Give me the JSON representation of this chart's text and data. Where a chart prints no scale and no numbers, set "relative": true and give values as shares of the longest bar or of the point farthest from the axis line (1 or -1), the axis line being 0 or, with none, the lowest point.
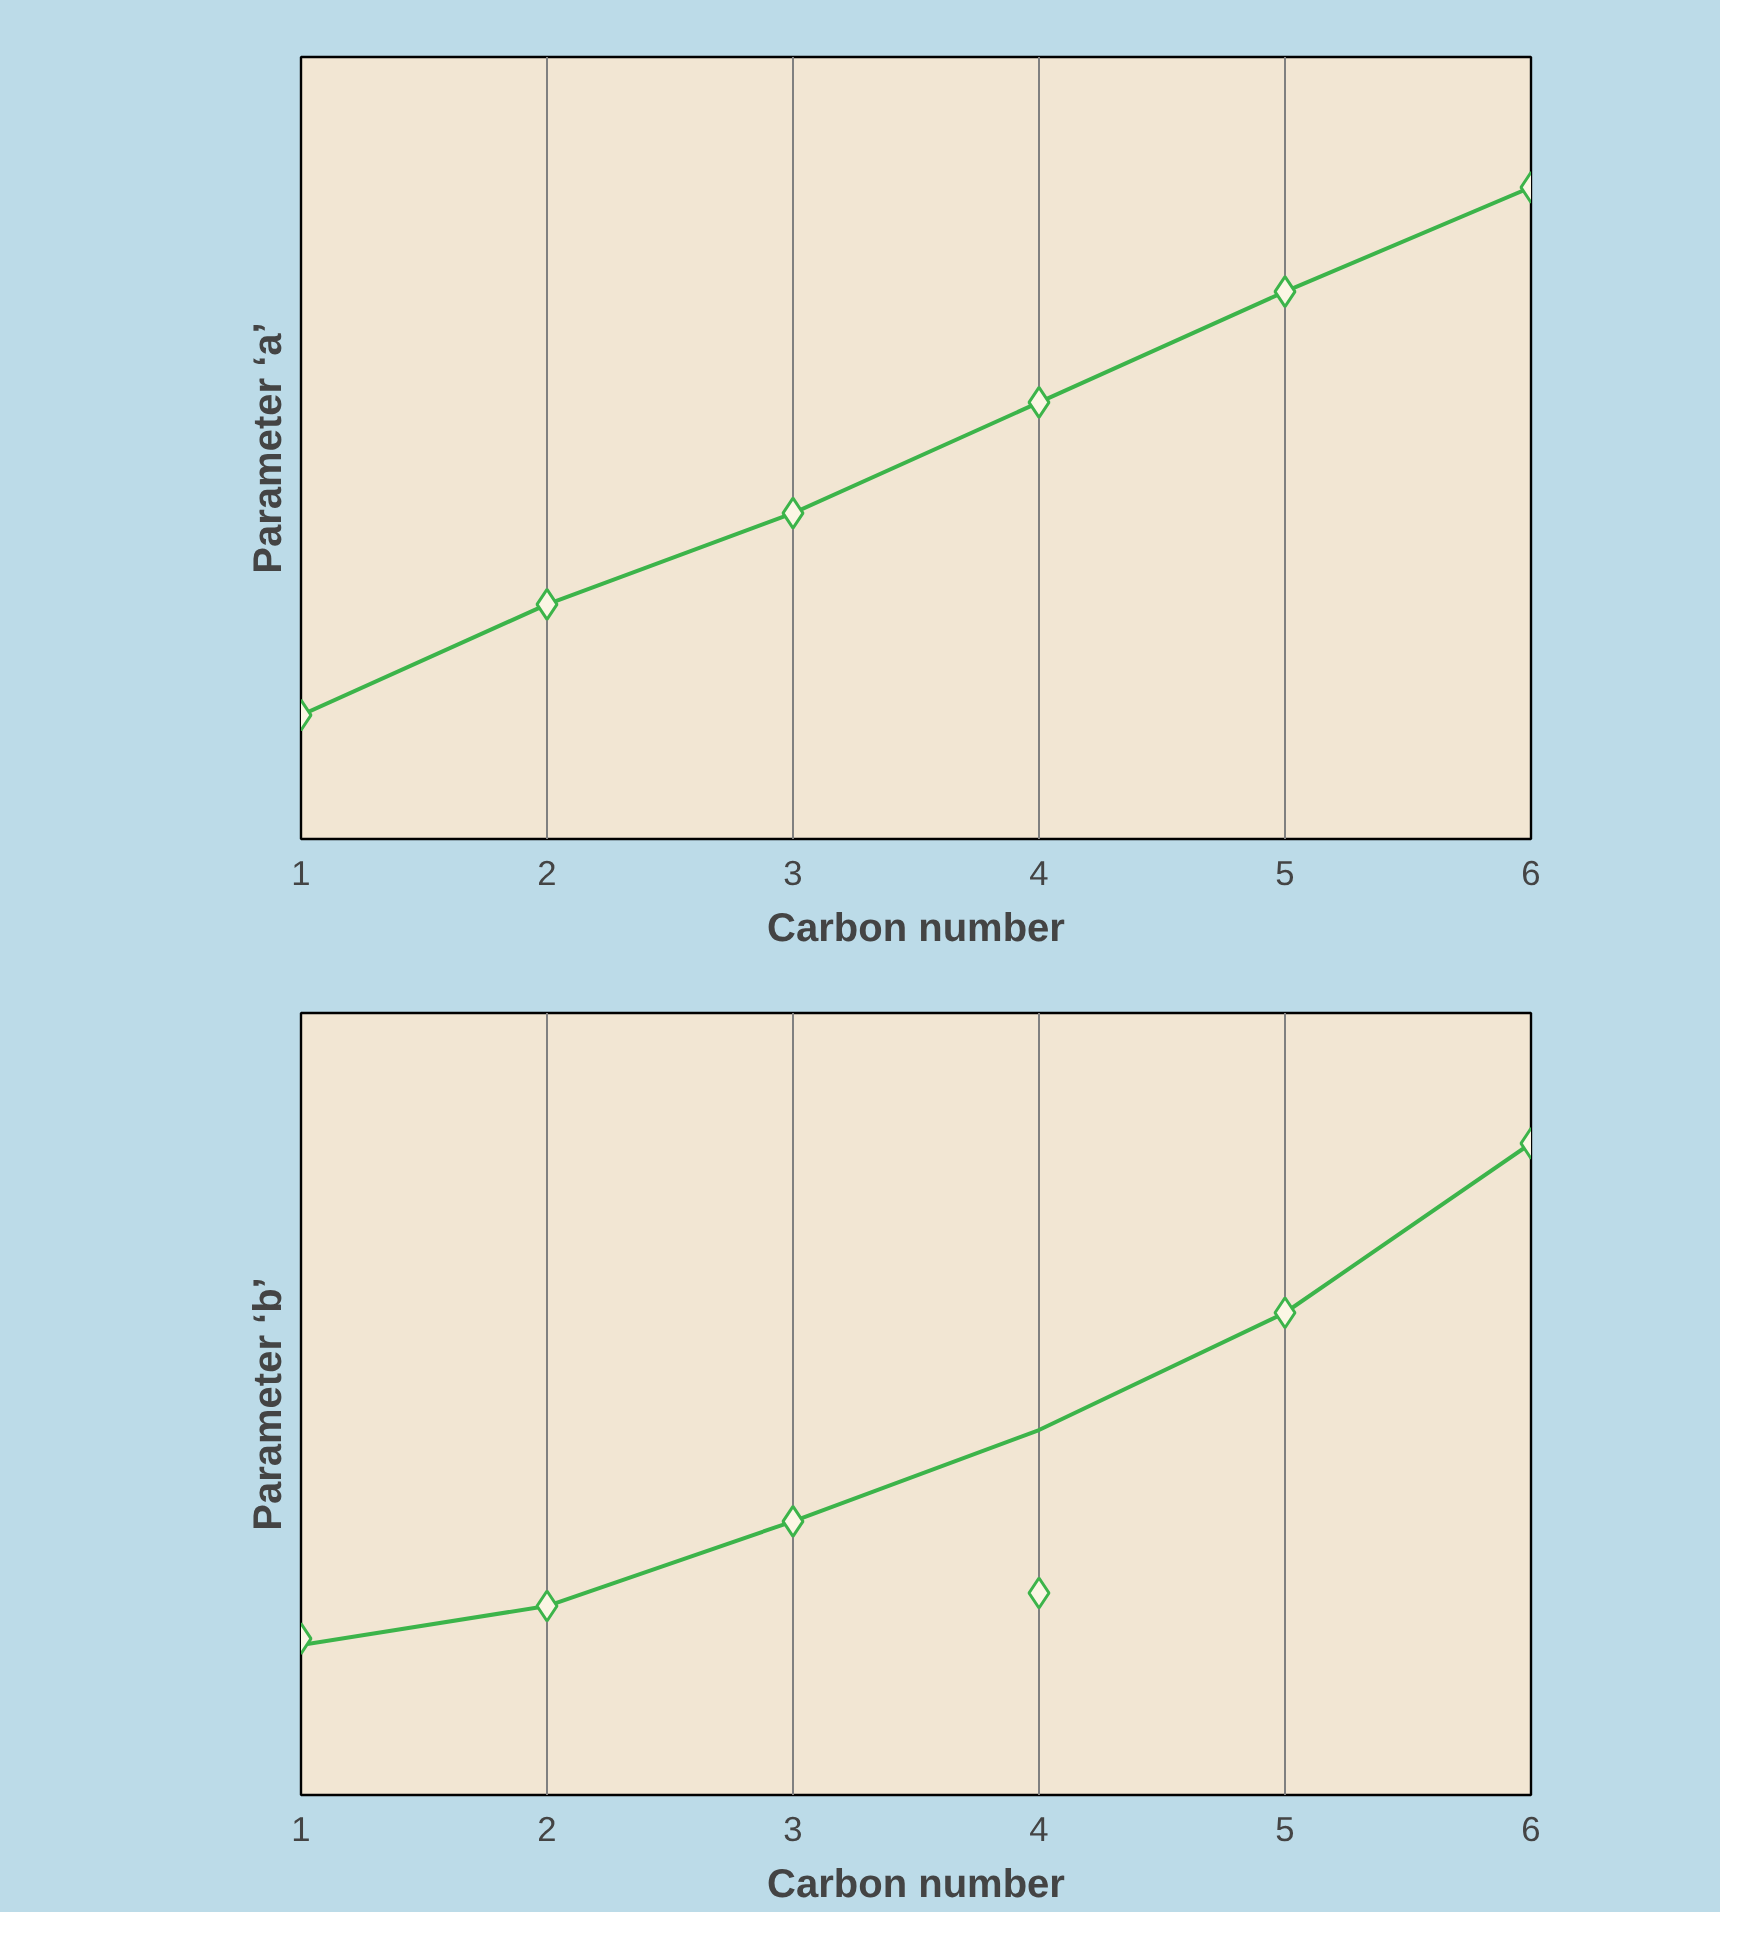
{
  "chart_data": [
    {
      "type": "line",
      "relative": true,
      "xlabel": "Carbon number",
      "ylabel": "Parameter ‘a’",
      "x": [
        1,
        2,
        3,
        4,
        5,
        6
      ],
      "xlim": [
        1,
        6
      ],
      "xticks": [
        1,
        2,
        3,
        4,
        5,
        6
      ],
      "tick_labels": "x",
      "grid": "x",
      "marker": "diamond",
      "line_style": "solid",
      "series": [
        {
          "color": "#3cb44a",
          "values": [
            0.19,
            0.36,
            0.5,
            0.67,
            0.84,
            1
          ]
        }
      ]
    },
    {
      "type": "scatter",
      "relative": true,
      "xlabel": "Carbon number",
      "ylabel": "Parameter ‘b’",
      "x": [
        1,
        2,
        3,
        4,
        5,
        6
      ],
      "xlim": [
        1,
        6
      ],
      "xticks": [
        1,
        2,
        3,
        4,
        5,
        6
      ],
      "tick_labels": "x",
      "grid": "x",
      "marker": "diamond",
      "series": [
        {
          "type": "line",
          "marker": "none",
          "line_style": "solid",
          "color": "#3cb44a",
          "x": [
            1,
            2,
            3,
            4,
            5,
            6
          ],
          "values": [
            0.23,
            0.29,
            0.42,
            0.56,
            0.74,
            1
          ]
        },
        {
          "type": "scatter",
          "color": "#3cb44a",
          "values": [
            0.24,
            0.29,
            0.42,
            0.31,
            0.74,
            1
          ]
        }
      ]
    }
  ]
}
